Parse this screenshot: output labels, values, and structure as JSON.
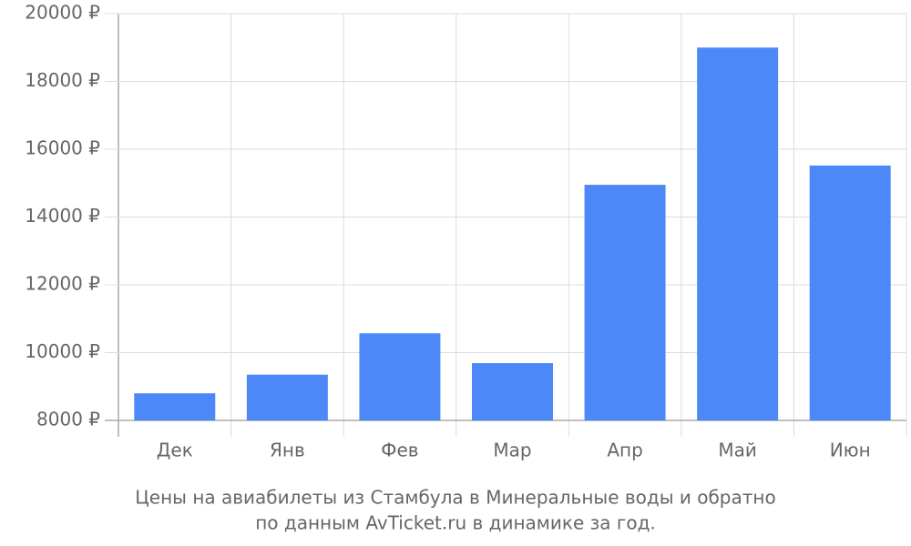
{
  "chart_data": {
    "type": "bar",
    "caption": [
      "Цены на авиабилеты из Стамбула в Минеральные воды и обратно",
      "по данным AvTicket.ru в динамике за год."
    ],
    "categories": [
      "Дек",
      "Янв",
      "Фев",
      "Мар",
      "Апр",
      "Май",
      "Июн"
    ],
    "values": [
      8800,
      9350,
      10570,
      9690,
      14950,
      19000,
      15520
    ],
    "color": "#4d88f8",
    "ylim": [
      8000,
      20000
    ],
    "yticks": [
      {
        "value": 8000,
        "label": "8000 ₽"
      },
      {
        "value": 10000,
        "label": "10000 ₽"
      },
      {
        "value": 12000,
        "label": "12000 ₽"
      },
      {
        "value": 14000,
        "label": "14000 ₽"
      },
      {
        "value": 16000,
        "label": "16000 ₽"
      },
      {
        "value": 18000,
        "label": "18000 ₽"
      },
      {
        "value": 20000,
        "label": "20000 ₽"
      }
    ],
    "grid": true
  }
}
